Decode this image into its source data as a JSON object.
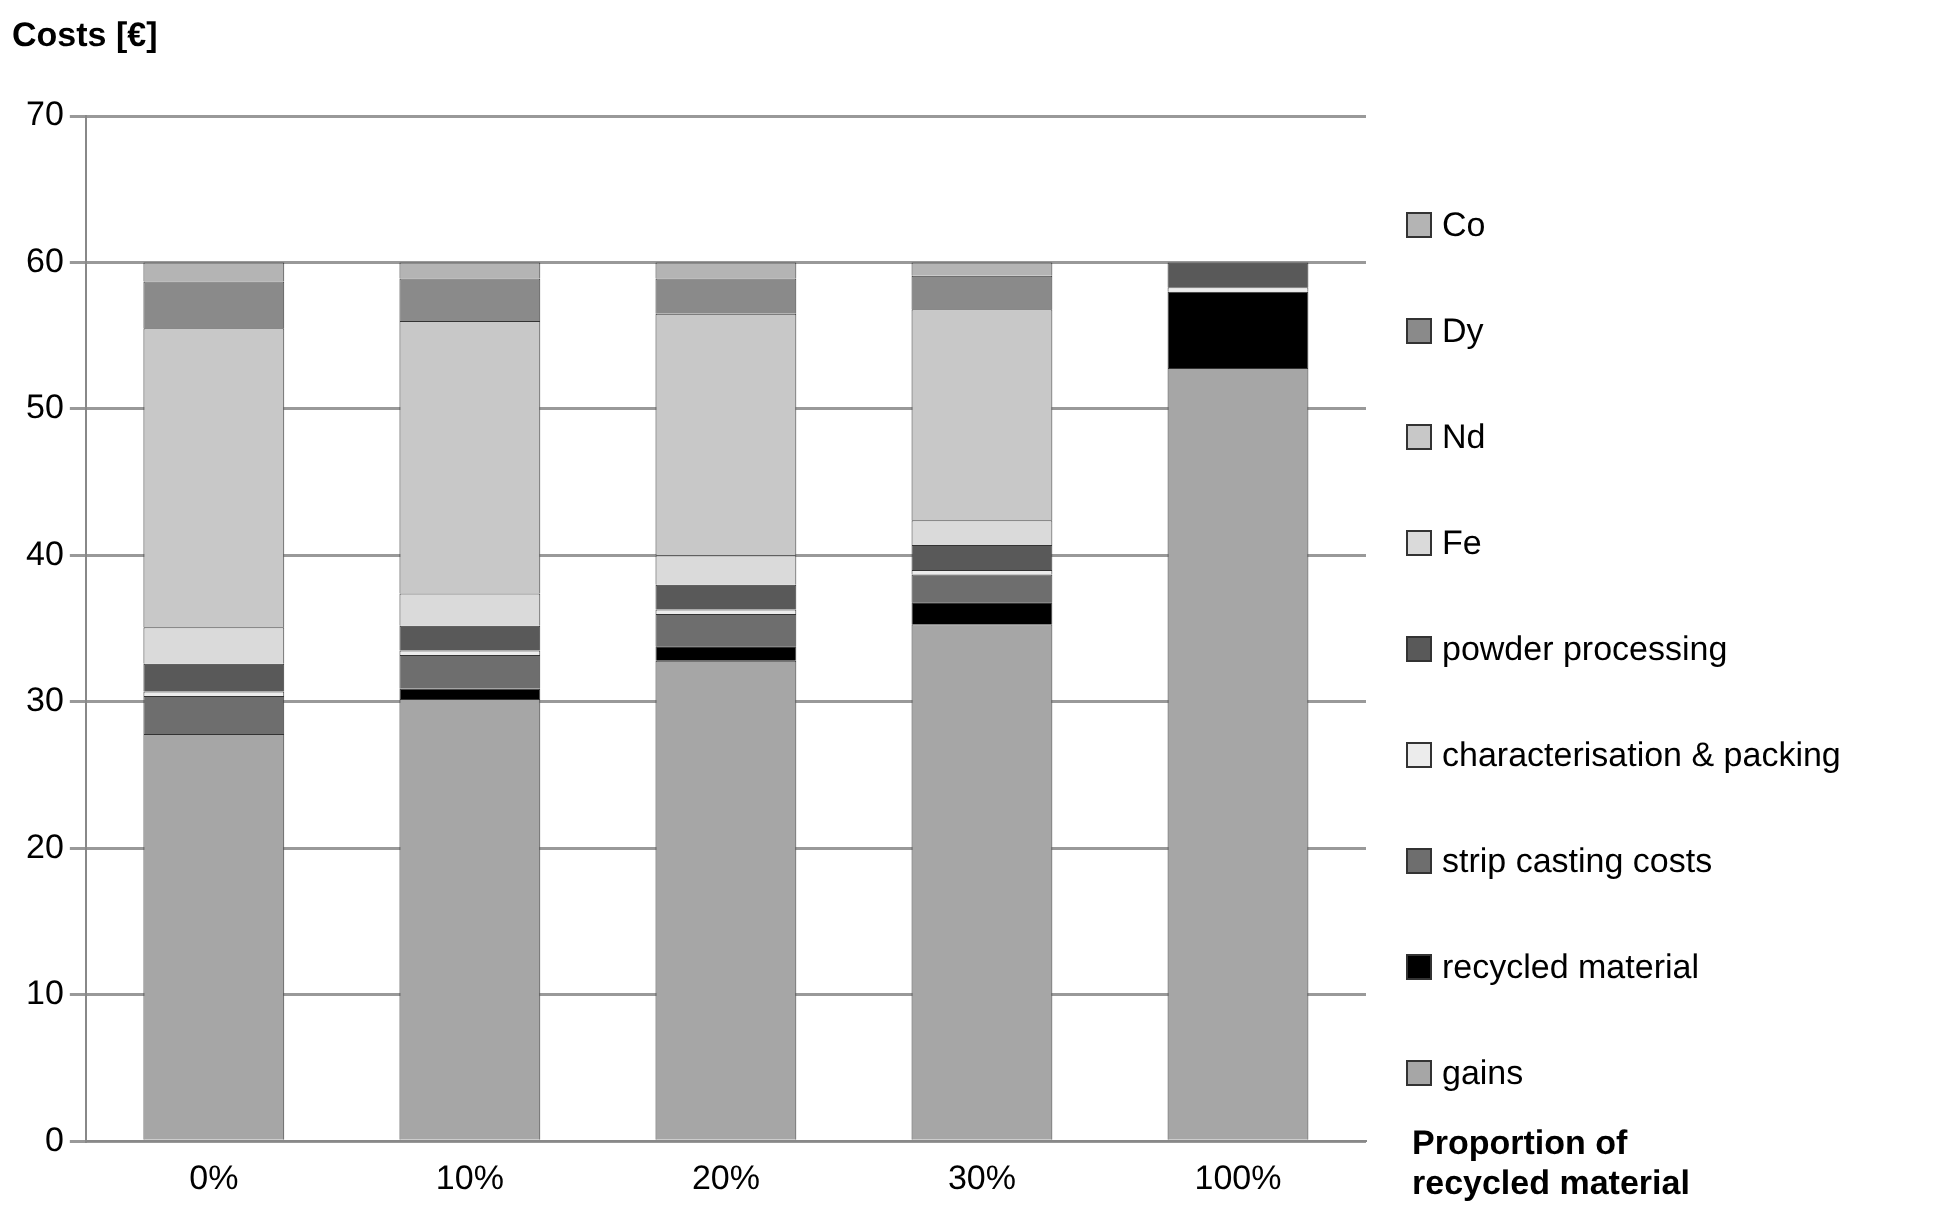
{
  "chart_data": {
    "type": "bar",
    "stacked": true,
    "ylabel": "Costs [€]",
    "xlabel": "Proportion of recycled material",
    "categories": [
      "0%",
      "10%",
      "20%",
      "30%",
      "100%"
    ],
    "ylim": [
      0,
      70
    ],
    "yticks": [
      0,
      10,
      20,
      30,
      40,
      50,
      60,
      70
    ],
    "grid": "y",
    "legend": "right",
    "series": [
      {
        "name": "gains",
        "color": "#a6a6a6",
        "values": [
          27.8,
          30.2,
          32.8,
          35.3,
          52.8
        ]
      },
      {
        "name": "recycled material",
        "color": "#000000",
        "values": [
          0,
          0.7,
          1.0,
          1.5,
          5.2
        ]
      },
      {
        "name": "strip casting costs",
        "color": "#6e6e6e",
        "values": [
          2.6,
          2.3,
          2.2,
          1.9,
          0
        ]
      },
      {
        "name": "characterisation & packing",
        "color": "#ececec",
        "values": [
          0.3,
          0.3,
          0.3,
          0.3,
          0.3
        ]
      },
      {
        "name": "powder processing",
        "color": "#595959",
        "values": [
          1.9,
          1.7,
          1.7,
          1.7,
          1.7
        ]
      },
      {
        "name": "Fe",
        "color": "#dadada",
        "values": [
          2.5,
          2.2,
          2.0,
          1.7,
          0
        ]
      },
      {
        "name": "Nd",
        "color": "#c8c8c8",
        "values": [
          20.4,
          18.6,
          16.5,
          14.4,
          0
        ]
      },
      {
        "name": "Dy",
        "color": "#8a8a8a",
        "values": [
          3.2,
          2.9,
          2.4,
          2.3,
          0
        ]
      },
      {
        "name": "Co",
        "color": "#b4b4b4",
        "values": [
          1.3,
          1.1,
          1.1,
          0.9,
          0
        ]
      }
    ]
  }
}
